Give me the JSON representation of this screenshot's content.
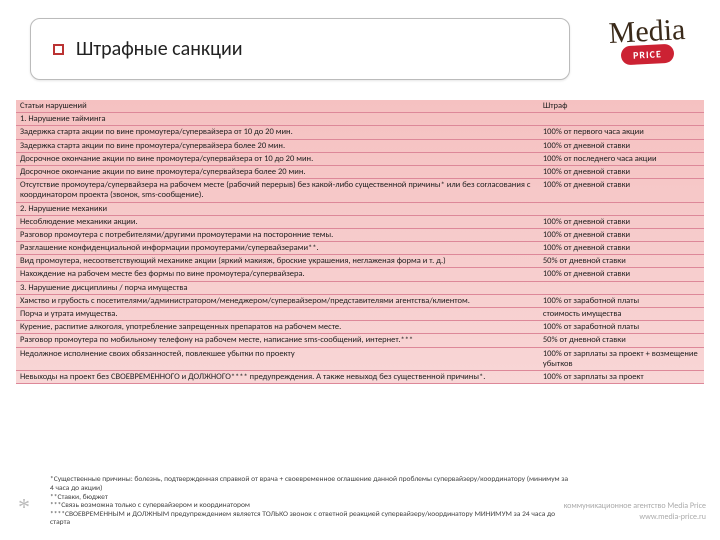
{
  "header": {
    "title": "Штрафные санкции"
  },
  "logo": {
    "line1": "Media",
    "line2": "PRICE"
  },
  "table": {
    "rows": [
      {
        "left": "Статьи нарушений",
        "right": "Штраф"
      },
      {
        "left": "1. Нарушение тайминга",
        "right": ""
      },
      {
        "left": "Задержка старта акции по вине промоутера/супервайзера от 10 до 20 мин.",
        "right": "100% от первого часа акции"
      },
      {
        "left": "Задержка старта акции по вине промоутера/супервайзера более 20 мин.",
        "right": "100% от дневной ставки"
      },
      {
        "left": "Досрочное окончание акции по вине промоутера/супервайзера от 10 до 20 мин.",
        "right": "100% от последнего часа акции"
      },
      {
        "left": "Досрочное окончание акции по вине промоутера/супервайзера более 20 мин.",
        "right": "100% от дневной ставки"
      },
      {
        "left": "Отсутствие промоутера/супервайзера на рабочем месте (рабочий перерыв) без какой-либо существенной причины* или без согласования с координатором проекта (звонок, sms-сообщение).",
        "right": "100% от дневной ставки"
      },
      {
        "left": "2. Нарушение механики",
        "right": ""
      },
      {
        "left": "Несоблюдение механики акции.",
        "right": "100% от дневной ставки"
      },
      {
        "left": "Разговор промоутера с потребителями/другими промоутерами на посторонние темы.",
        "right": "100% от дневной ставки"
      },
      {
        "left": "Разглашение конфиденциальной информации промоутерами/супервайзерами**.",
        "right": "100% от дневной ставки"
      },
      {
        "left": "Вид промоутера, несоответствующий механике акции (яркий макияж, броские украшения, неглаженая форма и т. д.)",
        "right": "50% от дневной ставки"
      },
      {
        "left": "Нахождение на рабочем месте без формы по вине промоутера/супервайзера.",
        "right": "100% от дневной ставки"
      },
      {
        "left": "3. Нарушение дисциплины / порча имущества",
        "right": ""
      },
      {
        "left": "Хамство и грубость с посетителями/администратором/менеджером/супервайзером/представителями агентства/клиентом.",
        "right": "100% от заработной платы"
      },
      {
        "left": "Порча и утрата имущества.",
        "right": "стоимость имущества"
      },
      {
        "left": "Курение, распитие алкоголя, употребление запрещенных препаратов на рабочем месте.",
        "right": "100% от заработной платы"
      },
      {
        "left": "Разговор промоутера по мобильному телефону на рабочем месте, написание sms-сообщений, интернет.***",
        "right": "50% от дневной ставки"
      },
      {
        "left": "Недолжное исполнение своих обязанностей, повлекшее убытки по проекту",
        "right": "100% от зарплаты за проект + возмещение убытков"
      },
      {
        "left": "Невыходы на проект без СВОЕВРЕМЕННОГО и ДОЛЖНОГО**** предупреждения. А также невыход без существенной причины*.",
        "right": "100% от зарплаты за проект"
      }
    ]
  },
  "footnotes": {
    "f1": "*Существенные причины: болезнь, подтвержденная справкой от врача + своевременное оглашение данной проблемы супервайзеру/координатору (минимум за 4 часа до акции)",
    "f2": "**Ставки, бюджет",
    "f3": "***Связь возможна только с супервайзером и координатором",
    "f4": "****СВОЕВРЕМЕННЫМ и ДОЛЖНЫМ предупреждением является ТОЛЬКО звонок с ответной реакцией супервайзеру/координатору МИНИМУМ за 24 часа до старта"
  },
  "footer": {
    "line1": "коммуникационное агентство Media Price",
    "line2": "www.media-price.ru"
  },
  "asterisk": "*"
}
